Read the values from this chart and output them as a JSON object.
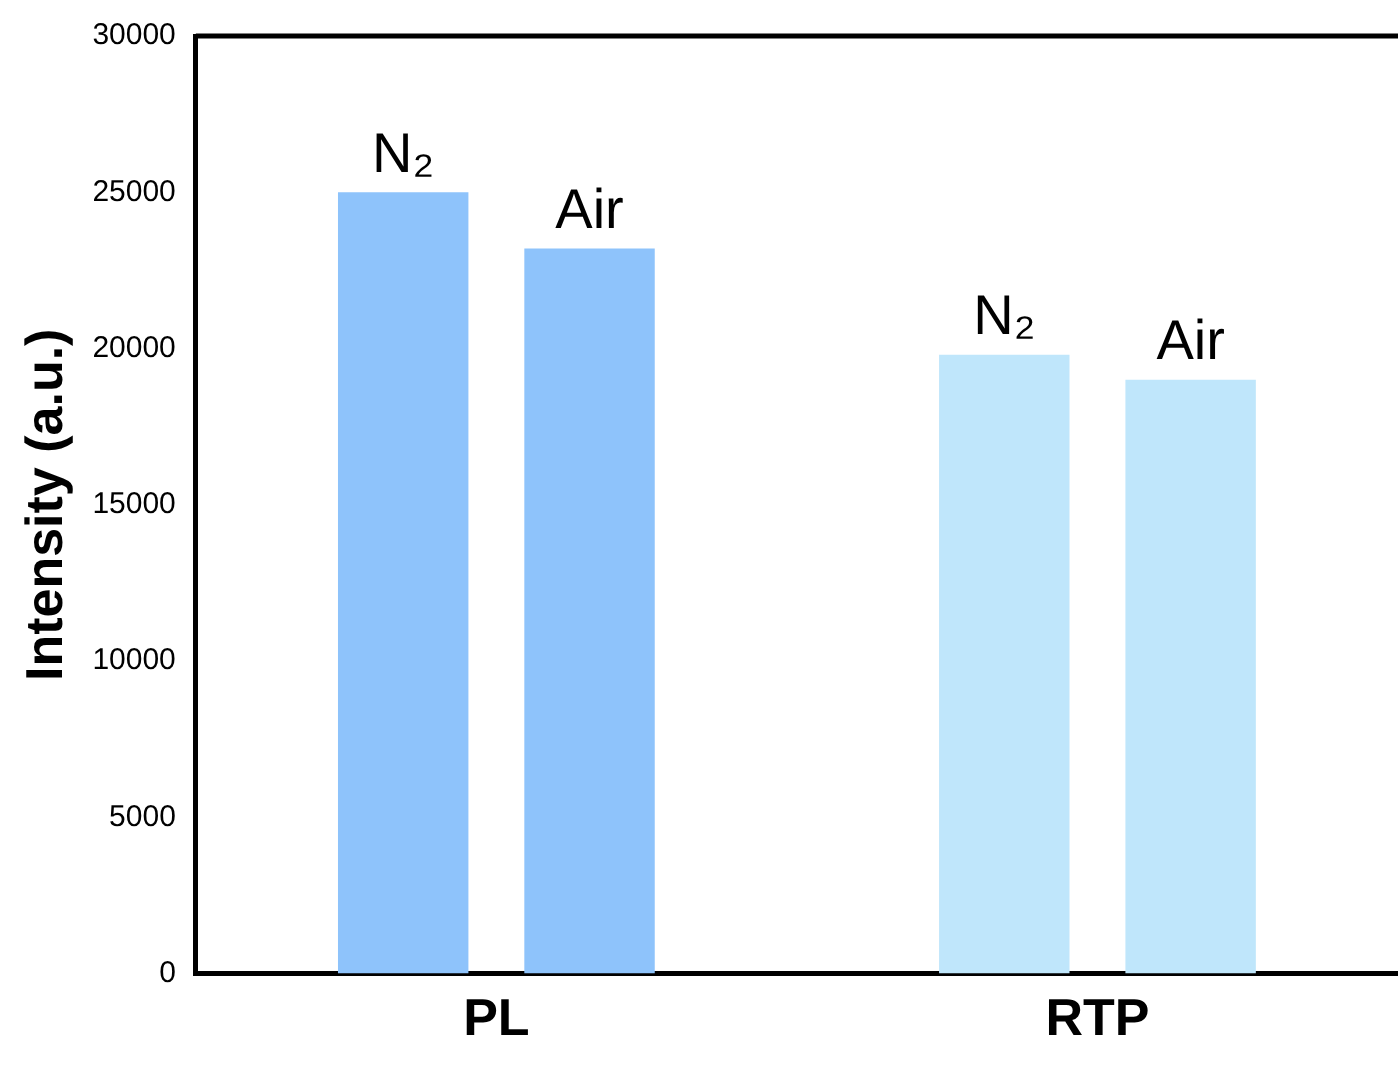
{
  "chart_data": {
    "type": "bar",
    "ylabel": "Intensity (a.u.)",
    "categories": [
      "PL",
      "RTP"
    ],
    "series": [
      {
        "name": "N₂",
        "colors": [
          "#8ec3fb",
          "#bfe6fb"
        ],
        "values": [
          25000,
          19800
        ]
      },
      {
        "name": "Air",
        "colors": [
          "#8ec3fb",
          "#bfe6fb"
        ],
        "values": [
          23200,
          19000
        ]
      }
    ],
    "ylim": [
      0,
      30000
    ],
    "yticks": [
      0,
      5000,
      10000,
      15000,
      20000,
      25000,
      30000
    ],
    "grid": false,
    "legend": false
  }
}
